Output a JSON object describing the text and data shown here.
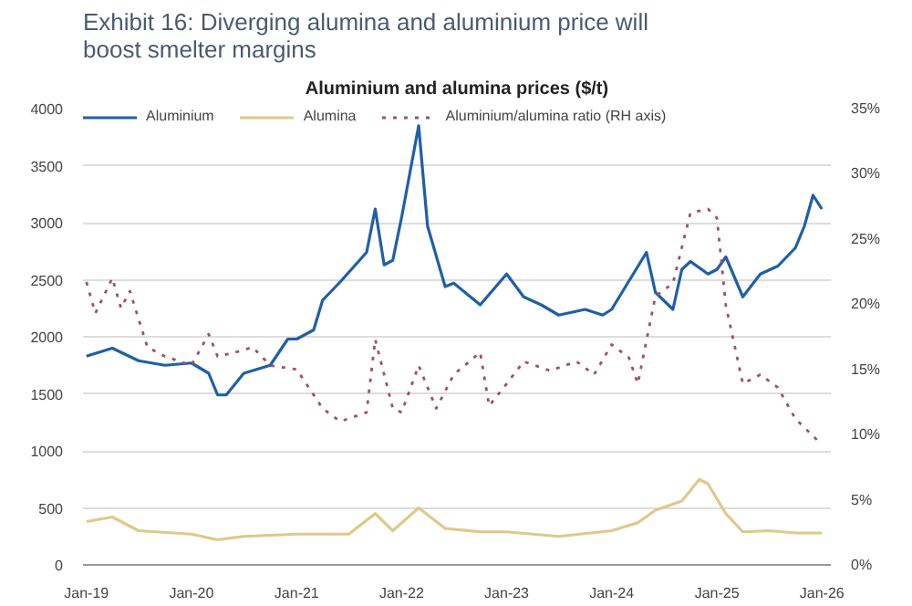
{
  "chart_data": {
    "type": "line",
    "title": "Exhibit 16:  Diverging alumina and aluminium price will boost smelter margins",
    "subtitle": "Aluminium and alumina prices ($/t)",
    "series": [
      {
        "name": "Aluminium",
        "color": "#1f5fa8",
        "line_style": "solid",
        "x": [
          "2019-01",
          "2019-04",
          "2019-07",
          "2019-10",
          "2020-01",
          "2020-03",
          "2020-04",
          "2020-05",
          "2020-07",
          "2020-10",
          "2020-12",
          "2021-01",
          "2021-03",
          "2021-04",
          "2021-06",
          "2021-09",
          "2021-10",
          "2021-11",
          "2021-12",
          "2022-01",
          "2022-03",
          "2022-04",
          "2022-06",
          "2022-07",
          "2022-10",
          "2023-01",
          "2023-03",
          "2023-05",
          "2023-07",
          "2023-10",
          "2023-12",
          "2024-01",
          "2024-05",
          "2024-06",
          "2024-08",
          "2024-09",
          "2024-10",
          "2024-12",
          "2025-01",
          "2025-02",
          "2025-04",
          "2025-06",
          "2025-08",
          "2025-10",
          "2025-11",
          "2025-12",
          "2026-01"
        ],
        "values": [
          1830,
          1900,
          1790,
          1750,
          1770,
          1680,
          1490,
          1490,
          1680,
          1750,
          1980,
          1980,
          2060,
          2320,
          2480,
          2740,
          3120,
          2630,
          2670,
          3050,
          3850,
          2970,
          2440,
          2470,
          2280,
          2550,
          2350,
          2280,
          2190,
          2240,
          2190,
          2240,
          2740,
          2390,
          2240,
          2590,
          2660,
          2550,
          2590,
          2700,
          2350,
          2550,
          2620,
          2780,
          2970,
          3240,
          3120
        ]
      },
      {
        "name": "Alumina",
        "color": "#e0c88a",
        "line_style": "solid",
        "x": [
          "2019-01",
          "2019-04",
          "2019-07",
          "2020-01",
          "2020-04",
          "2020-07",
          "2021-01",
          "2021-07",
          "2021-10",
          "2021-12",
          "2022-03",
          "2022-06",
          "2022-10",
          "2023-01",
          "2023-07",
          "2024-01",
          "2024-04",
          "2024-06",
          "2024-09",
          "2024-11",
          "2024-12",
          "2025-02",
          "2025-04",
          "2025-07",
          "2025-10",
          "2026-01"
        ],
        "values": [
          380,
          420,
          300,
          270,
          220,
          250,
          270,
          270,
          450,
          300,
          500,
          320,
          290,
          290,
          250,
          300,
          370,
          480,
          560,
          750,
          710,
          450,
          290,
          300,
          280,
          280
        ]
      },
      {
        "name": "Aluminium/alumina ratio (RH axis)",
        "color": "#a0506a",
        "line_style": "dotted",
        "axis": "y2",
        "x": [
          "2019-01",
          "2019-02",
          "2019-04",
          "2019-05",
          "2019-06",
          "2019-08",
          "2019-10",
          "2020-01",
          "2020-03",
          "2020-04",
          "2020-06",
          "2020-08",
          "2020-10",
          "2021-01",
          "2021-04",
          "2021-06",
          "2021-09",
          "2021-10",
          "2021-12",
          "2022-01",
          "2022-03",
          "2022-05",
          "2022-07",
          "2022-10",
          "2022-11",
          "2023-01",
          "2023-03",
          "2023-06",
          "2023-09",
          "2023-11",
          "2024-01",
          "2024-03",
          "2024-04",
          "2024-06",
          "2024-08",
          "2024-10",
          "2024-12",
          "2025-01",
          "2025-02",
          "2025-04",
          "2025-06",
          "2025-08",
          "2025-10",
          "2025-12",
          "2026-01"
        ],
        "values": [
          21.7,
          19.3,
          22,
          19.7,
          21,
          16.7,
          16,
          15.3,
          17.7,
          16,
          16.3,
          16.7,
          15.3,
          15,
          12,
          11,
          11.7,
          17.3,
          12,
          11.7,
          15.3,
          12,
          14.6,
          16.3,
          12.2,
          13.9,
          15.6,
          14.9,
          15.6,
          14.6,
          16.9,
          15.9,
          13.9,
          20.6,
          21.6,
          27,
          27.3,
          26.6,
          19.9,
          13.9,
          14.6,
          13.6,
          11.2,
          9.9,
          9.2
        ]
      }
    ],
    "xlim": [
      "2018-12-20",
      "2026-02-01"
    ],
    "xticks": [
      {
        "value": "2019-01",
        "label": "Jan-19"
      },
      {
        "value": "2020-01",
        "label": "Jan-20"
      },
      {
        "value": "2021-01",
        "label": "Jan-21"
      },
      {
        "value": "2022-01",
        "label": "Jan-22"
      },
      {
        "value": "2023-01",
        "label": "Jan-23"
      },
      {
        "value": "2024-01",
        "label": "Jan-24"
      },
      {
        "value": "2025-01",
        "label": "Jan-25"
      },
      {
        "value": "2026-01",
        "label": "Jan-26"
      }
    ],
    "ylim": [
      0,
      4000
    ],
    "yticks": [
      0,
      500,
      1000,
      1500,
      2000,
      2500,
      3000,
      3500,
      4000
    ],
    "y2lim": [
      0,
      35
    ],
    "y2ticks": [
      {
        "value": 0,
        "label": "0%"
      },
      {
        "value": 5,
        "label": "5%"
      },
      {
        "value": 10,
        "label": "10%"
      },
      {
        "value": 15,
        "label": "15%"
      },
      {
        "value": 20,
        "label": "20%"
      },
      {
        "value": 25,
        "label": "25%"
      },
      {
        "value": 30,
        "label": "30%"
      },
      {
        "value": 35,
        "label": "35%"
      }
    ],
    "grid": "y",
    "legend": "top"
  }
}
